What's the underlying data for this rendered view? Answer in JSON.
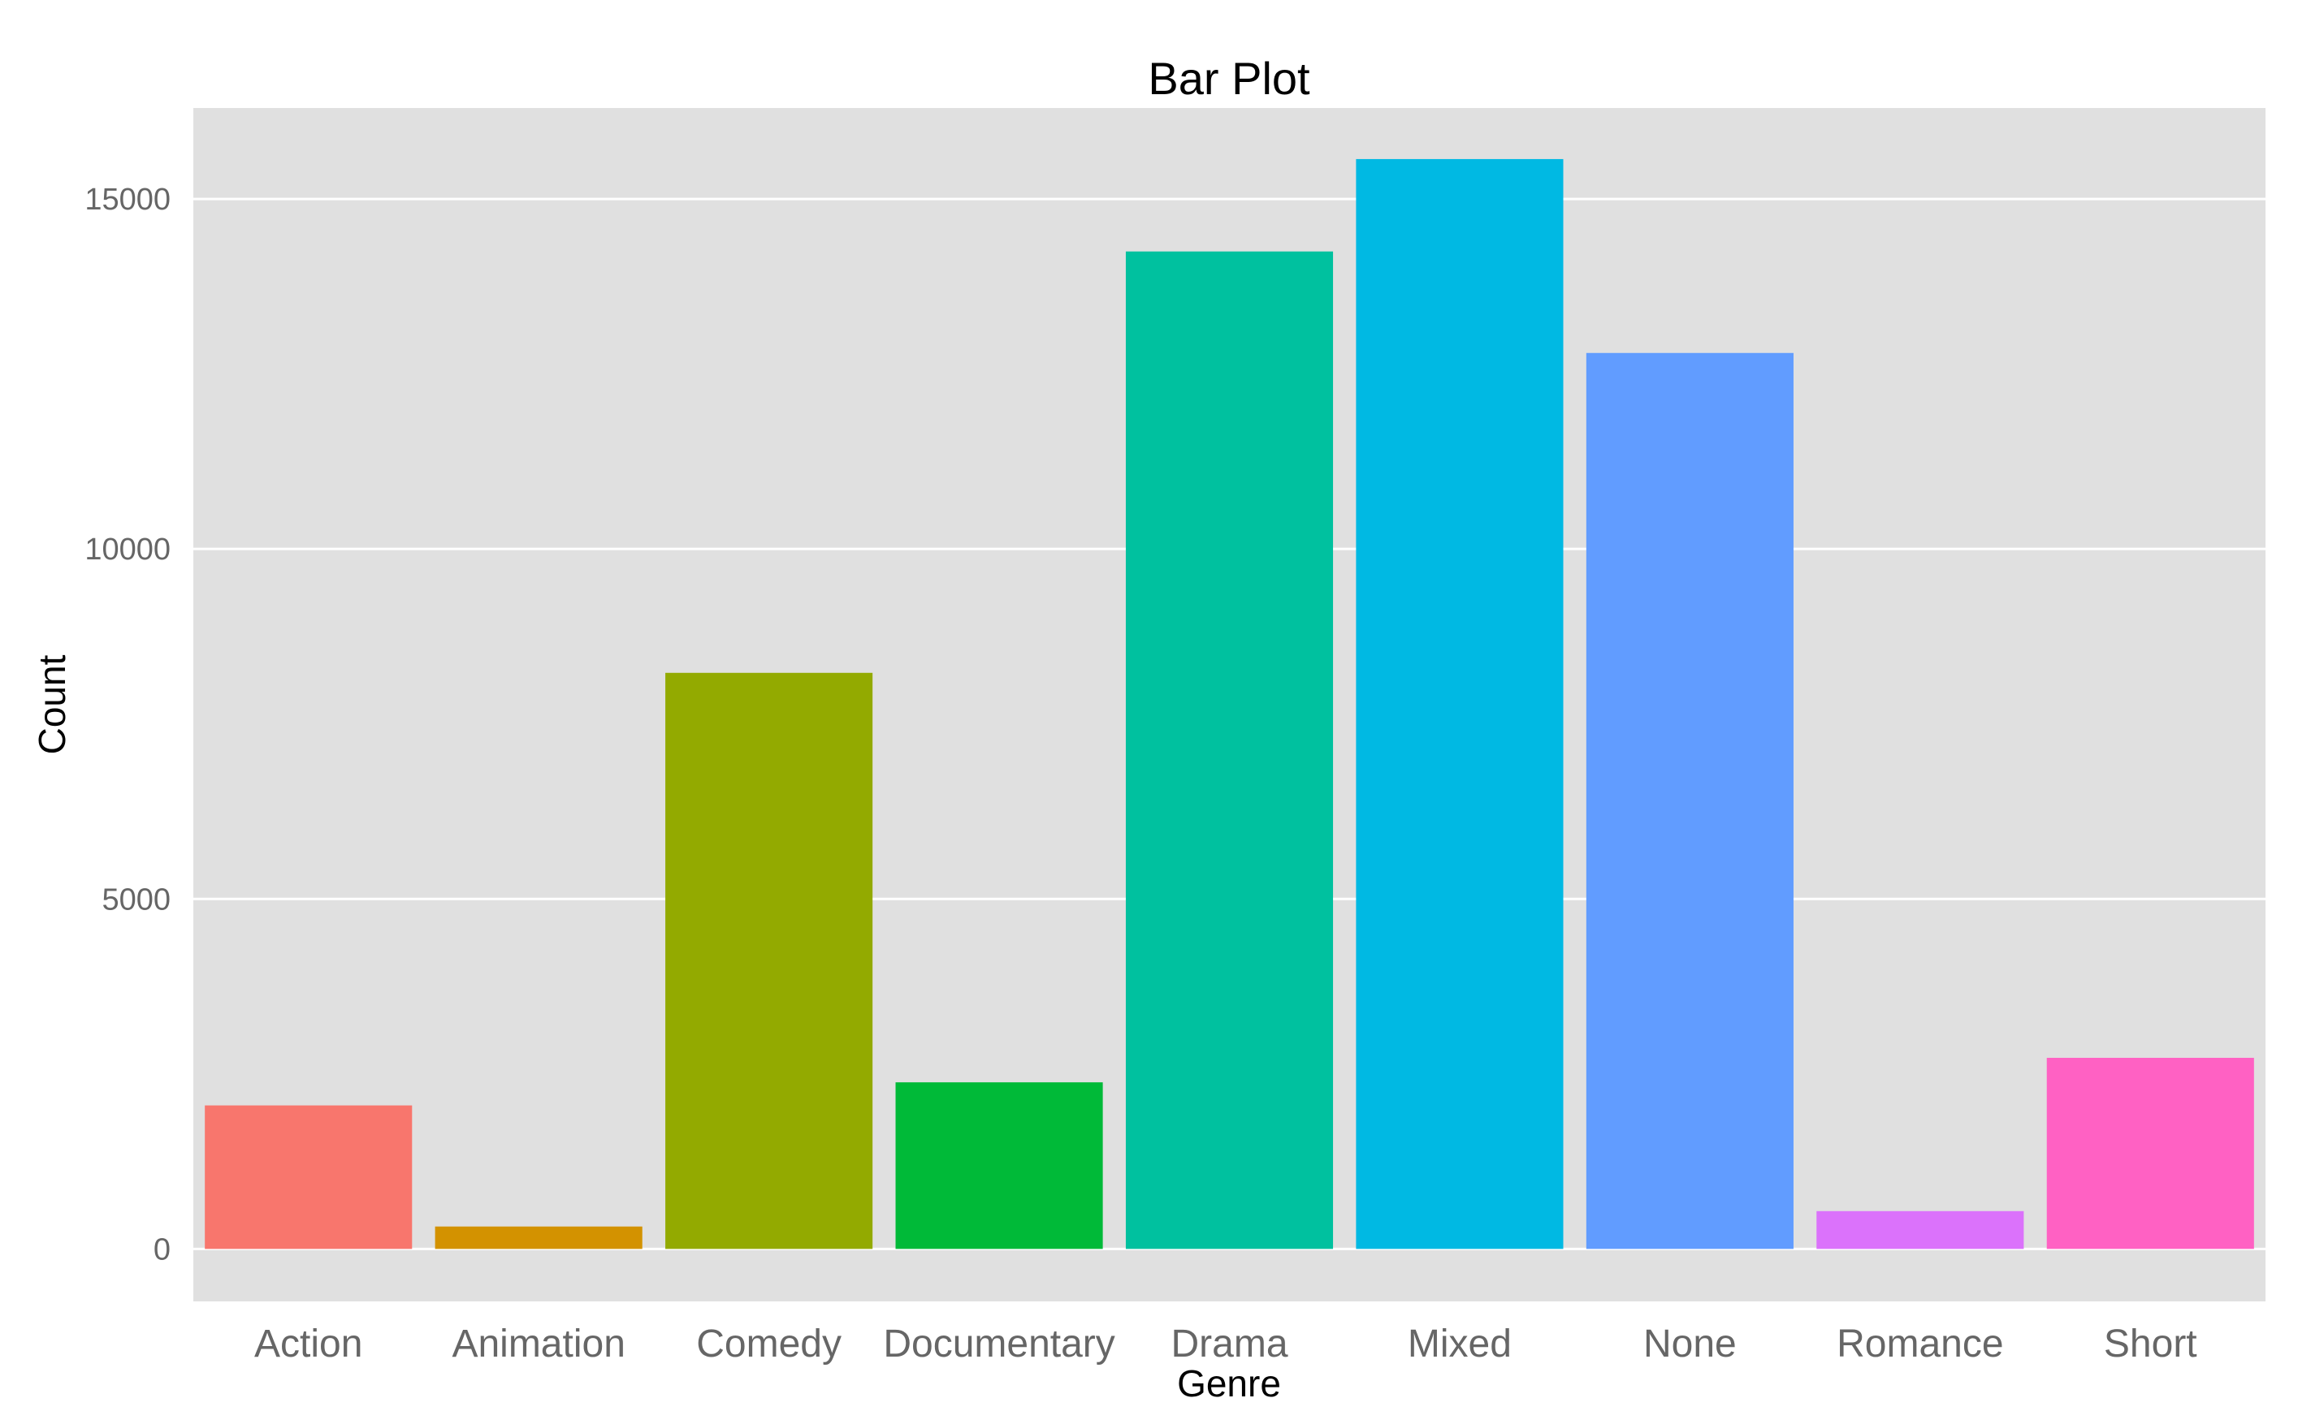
{
  "chart_data": {
    "type": "bar",
    "title": "Bar Plot",
    "xlabel": "Genre",
    "ylabel": "Count",
    "categories": [
      "Action",
      "Animation",
      "Comedy",
      "Documentary",
      "Drama",
      "Mixed",
      "None",
      "Romance",
      "Short"
    ],
    "values": [
      2050,
      320,
      8230,
      2380,
      14250,
      15570,
      12800,
      540,
      2730
    ],
    "colors": [
      "#F8766D",
      "#D39200",
      "#93AA00",
      "#00BA38",
      "#00C19F",
      "#00B9E3",
      "#619CFF",
      "#DB72FB",
      "#FF61C3"
    ],
    "ylim": [
      -750,
      16300
    ],
    "yticks": [
      0,
      5000,
      10000,
      15000
    ],
    "ytick_labels": [
      "0",
      "5000",
      "10000",
      "15000"
    ],
    "grid": true,
    "panel_background": "#E0E0E0",
    "legend": "none"
  }
}
